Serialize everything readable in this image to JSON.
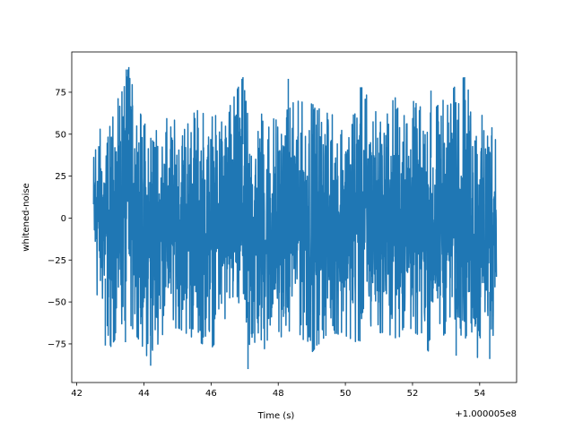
{
  "chart_data": {
    "type": "line",
    "title": "",
    "xlabel": "Time (s)",
    "ylabel": "whitened-noise",
    "x_offset_label": "+1.000005e8",
    "xlim": [
      41.85,
      55.1
    ],
    "ylim": [
      -98,
      99
    ],
    "x_ticks": [
      42,
      44,
      46,
      48,
      50,
      52,
      54
    ],
    "x_tick_labels": [
      "42",
      "44",
      "46",
      "48",
      "50",
      "52",
      "54"
    ],
    "y_ticks": [
      -75,
      -50,
      -25,
      0,
      25,
      50,
      75
    ],
    "y_tick_labels": [
      "−75",
      "−50",
      "−25",
      "0",
      "25",
      "50",
      "75"
    ],
    "grid": false,
    "series": [
      {
        "color": "#1f77b4",
        "x_range": [
          42.5,
          54.5
        ],
        "envelope": {
          "x": [
            42.5,
            42.55,
            42.8,
            43.0,
            43.5,
            44.0,
            44.2,
            44.5,
            45.0,
            45.5,
            46.0,
            46.5,
            46.95,
            47.1,
            47.5,
            48.0,
            48.5,
            49.0,
            49.5,
            50.0,
            50.5,
            51.0,
            51.5,
            52.0,
            52.5,
            53.0,
            53.5,
            54.0,
            54.45,
            54.5
          ],
          "upper": [
            40,
            57,
            50,
            55,
            90,
            55,
            62,
            60,
            58,
            65,
            60,
            64,
            84,
            60,
            62,
            58,
            70,
            68,
            62,
            60,
            78,
            60,
            72,
            70,
            62,
            72,
            84,
            60,
            68,
            45
          ],
          "lower": [
            -30,
            -48,
            -55,
            -77,
            -60,
            -78,
            -88,
            -70,
            -65,
            -72,
            -78,
            -62,
            -72,
            -90,
            -80,
            -72,
            -65,
            -80,
            -68,
            -70,
            -76,
            -68,
            -72,
            -66,
            -80,
            -68,
            -70,
            -85,
            -68,
            -35
          ]
        },
        "spikes": [
          {
            "x": 43.55,
            "y": 90
          },
          {
            "x": 46.95,
            "y": 84
          },
          {
            "x": 48.3,
            "y": 83
          },
          {
            "x": 50.45,
            "y": 78
          },
          {
            "x": 52.55,
            "y": 76
          },
          {
            "x": 53.55,
            "y": 84
          },
          {
            "x": 44.2,
            "y": -88
          },
          {
            "x": 47.1,
            "y": -90
          },
          {
            "x": 54.3,
            "y": -84
          },
          {
            "x": 42.85,
            "y": -76
          },
          {
            "x": 43.0,
            "y": -76
          },
          {
            "x": 43.45,
            "y": -74
          },
          {
            "x": 49.15,
            "y": -76
          },
          {
            "x": 53.3,
            "y": -82
          }
        ]
      }
    ]
  }
}
